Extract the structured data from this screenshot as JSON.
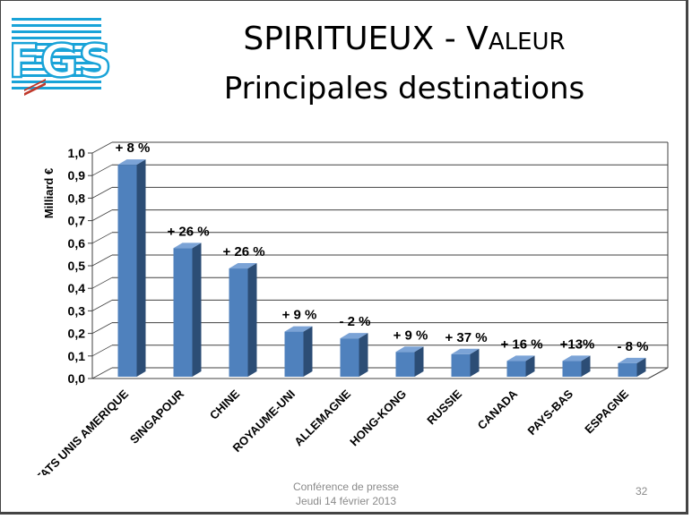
{
  "slide": {
    "logo_text": "FGS",
    "title_line1_main": "SPIRITUEUX - V",
    "title_line1_small": "ALEUR",
    "title_line2": "Principales destinations",
    "footer_line1": "Conférence de presse",
    "footer_line2": "Jeudi 14 février 2013",
    "page_number": "32"
  },
  "colors": {
    "bar_front": "#4f81bd",
    "bar_side": "#2c4d75",
    "bar_top": "#7ba3d6",
    "grid": "#404040",
    "logo_blue": "#19a3d8",
    "logo_red": "#c0392b"
  },
  "chart_data": {
    "type": "bar",
    "categories": [
      "ETATS UNIS AMERIQUE",
      "SINGAPOUR",
      "CHINE",
      "ROYAUME-UNI",
      "ALLEMAGNE",
      "HONG-KONG",
      "RUSSIE",
      "CANADA",
      "PAYS-BAS",
      "ESPAGNE"
    ],
    "values": [
      0.94,
      0.57,
      0.48,
      0.2,
      0.17,
      0.11,
      0.1,
      0.07,
      0.07,
      0.06
    ],
    "data_labels": [
      "+ 8 %",
      "+ 26 %",
      "+  26 %",
      "+ 9 %",
      "- 2 %",
      "+ 9 %",
      "+ 37 %",
      "+ 16 %",
      "+13%",
      "- 8 %"
    ],
    "ylabel": "Milliard €",
    "xlabel": "",
    "ylim": [
      0,
      1.0
    ],
    "yticks": [
      "0,0",
      "0,1",
      "0,2",
      "0,3",
      "0,4",
      "0,5",
      "0,6",
      "0,7",
      "0,8",
      "0,9",
      "1,0"
    ],
    "grid": true,
    "style": "3d"
  }
}
